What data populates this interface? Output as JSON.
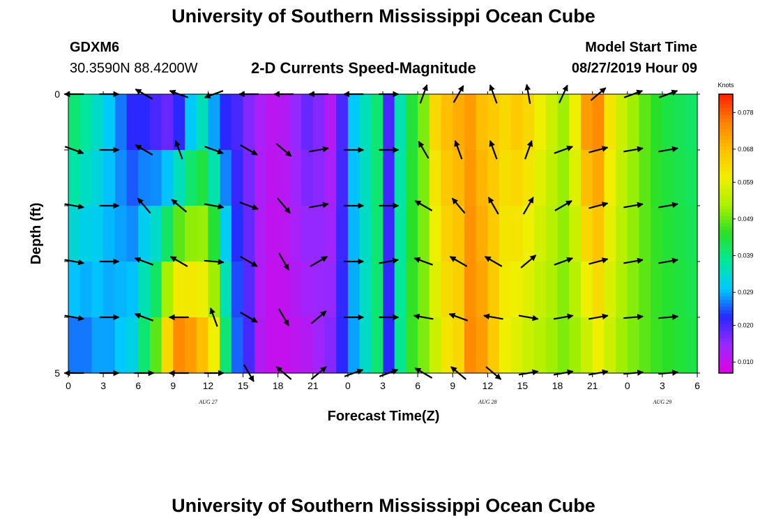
{
  "page": {
    "title_top": "University of Southern Mississippi Ocean Cube",
    "title_bottom": "University of Southern Mississippi Ocean Cube",
    "station_id": "GDXM6",
    "station_coords": "30.3590N 88.4200W",
    "model_label": "Model Start Time",
    "model_time": "08/27/2019 Hour 09"
  },
  "chart_data": {
    "type": "heatmap",
    "title": "2-D Currents Speed-Magnitude",
    "xlabel": "Forecast Time(Z)",
    "ylabel": "Depth (ft)",
    "y_ticks": [
      "0",
      "5"
    ],
    "ylim": [
      0,
      5
    ],
    "y_reversed": true,
    "x_ticks": [
      "0",
      "3",
      "6",
      "9",
      "12",
      "15",
      "18",
      "21",
      "0",
      "3",
      "6",
      "9",
      "12",
      "15",
      "18",
      "21",
      "0",
      "3",
      "6"
    ],
    "x_hours_range": [
      0,
      54
    ],
    "date_labels": [
      {
        "text": "AUG 27",
        "hour": 12
      },
      {
        "text": "AUG 28",
        "hour": 36
      },
      {
        "text": "AUG 29",
        "hour": 51
      }
    ],
    "colorbar": {
      "unit": "Knots",
      "min": 0.007,
      "max": 0.083,
      "tick_values": [
        "0.078",
        "0.068",
        "0.059",
        "0.049",
        "0.039",
        "0.029",
        "0.020",
        "0.010"
      ],
      "colors": [
        "#e000e0",
        "#9a28ff",
        "#2828ff",
        "#00c8ff",
        "#00e89a",
        "#28e028",
        "#aaf000",
        "#f0f000",
        "#ffc000",
        "#ff8000",
        "#ff2000"
      ]
    },
    "depth_levels": 5,
    "time_columns": 54,
    "speed_profile_surface": [
      0.04,
      0.037,
      0.034,
      0.03,
      0.026,
      0.022,
      0.022,
      0.02,
      0.018,
      0.022,
      0.03,
      0.035,
      0.028,
      0.022,
      0.02,
      0.016,
      0.013,
      0.011,
      0.012,
      0.015,
      0.018,
      0.016,
      0.012,
      0.02,
      0.03,
      0.035,
      0.04,
      0.02,
      0.036,
      0.044,
      0.05,
      0.064,
      0.068,
      0.07,
      0.072,
      0.068,
      0.066,
      0.064,
      0.066,
      0.064,
      0.06,
      0.056,
      0.052,
      0.06,
      0.072,
      0.074,
      0.062,
      0.056,
      0.052,
      0.048,
      0.045,
      0.043,
      0.042,
      0.041
    ],
    "speed_profile_bottom": [
      0.026,
      0.026,
      0.028,
      0.028,
      0.03,
      0.032,
      0.04,
      0.048,
      0.064,
      0.074,
      0.072,
      0.068,
      0.06,
      0.04,
      0.025,
      0.02,
      0.012,
      0.01,
      0.01,
      0.011,
      0.012,
      0.014,
      0.016,
      0.022,
      0.028,
      0.034,
      0.04,
      0.022,
      0.038,
      0.046,
      0.05,
      0.056,
      0.062,
      0.064,
      0.074,
      0.072,
      0.066,
      0.06,
      0.058,
      0.056,
      0.054,
      0.052,
      0.05,
      0.052,
      0.056,
      0.06,
      0.056,
      0.052,
      0.05,
      0.048,
      0.046,
      0.045,
      0.044,
      0.043
    ],
    "vectors": {
      "column_hours": [
        0.5,
        3.5,
        6.5,
        9.5,
        12.5,
        15.5,
        18.5,
        21.5,
        24.5,
        27.5,
        30.5,
        33.5,
        36.5,
        39.5,
        42.5,
        45.5,
        48.5,
        51.5
      ],
      "depth_rows": [
        0,
        1,
        2,
        3,
        4,
        5
      ],
      "angles_deg": [
        [
          180,
          0,
          150,
          160,
          200,
          180,
          180,
          180,
          180,
          0,
          70,
          60,
          110,
          100,
          65,
          40,
          20,
          20
        ],
        [
          -20,
          0,
          150,
          110,
          -20,
          -30,
          -40,
          10,
          0,
          0,
          120,
          110,
          110,
          70,
          20,
          15,
          10,
          10
        ],
        [
          -10,
          0,
          130,
          140,
          -10,
          -20,
          -50,
          10,
          0,
          0,
          150,
          130,
          120,
          60,
          30,
          15,
          10,
          10
        ],
        [
          -10,
          0,
          160,
          150,
          -5,
          -30,
          -60,
          30,
          0,
          10,
          160,
          150,
          150,
          40,
          20,
          15,
          10,
          10
        ],
        [
          -10,
          0,
          160,
          180,
          110,
          -30,
          -60,
          40,
          0,
          0,
          170,
          160,
          170,
          -10,
          10,
          10,
          5,
          5
        ],
        [
          180,
          0,
          0,
          180,
          0,
          -60,
          140,
          40,
          20,
          20,
          150,
          140,
          -40,
          10,
          10,
          10,
          5,
          5
        ]
      ]
    }
  }
}
